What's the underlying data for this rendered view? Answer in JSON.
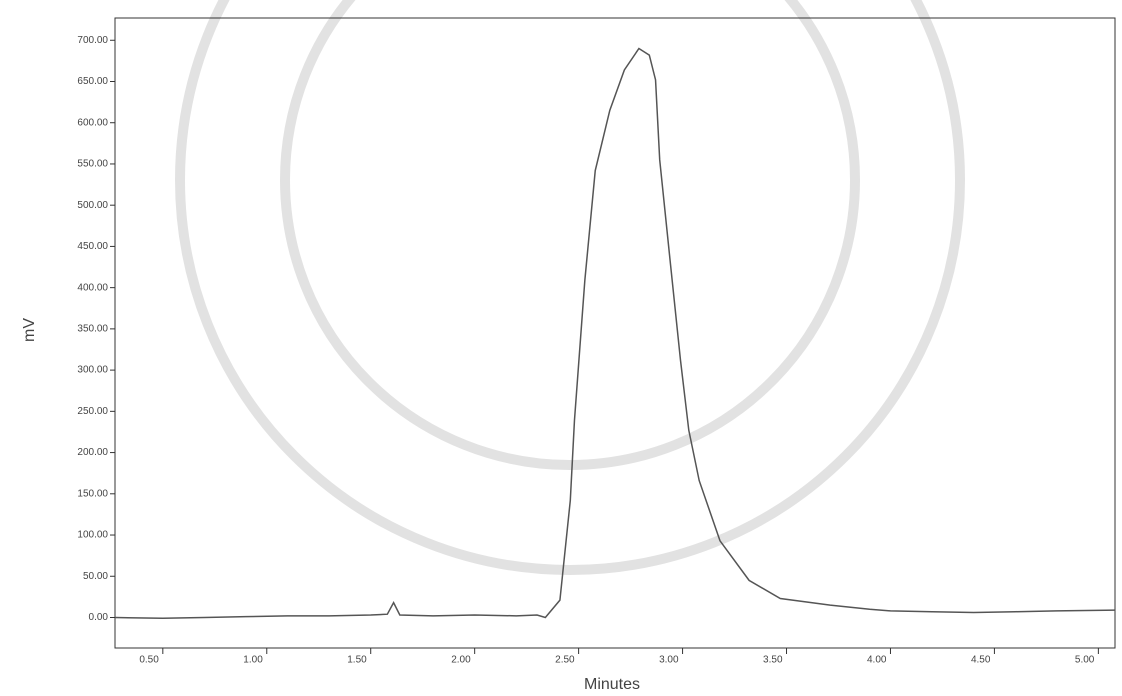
{
  "chart_data": {
    "type": "line",
    "x_label": "Minutes",
    "y_label": "mV",
    "x": [
      0.27,
      0.5,
      0.7,
      0.9,
      1.1,
      1.3,
      1.5,
      1.58,
      1.61,
      1.64,
      1.8,
      2.0,
      2.2,
      2.3,
      2.34,
      2.41,
      2.46,
      2.48,
      2.53,
      2.58,
      2.65,
      2.72,
      2.79,
      2.84,
      2.87,
      2.89,
      2.94,
      2.99,
      3.03,
      3.08,
      3.18,
      3.32,
      3.47,
      3.71,
      3.9,
      4.0,
      4.2,
      4.4,
      4.6,
      4.8,
      5.08
    ],
    "series": [
      {
        "name": "mV",
        "color": "#555555",
        "values": [
          0,
          -1,
          0,
          1,
          2,
          2,
          3,
          4,
          18,
          3,
          2,
          3,
          2,
          3,
          0,
          21,
          142,
          239,
          409,
          542,
          615,
          664,
          690,
          682,
          652,
          555,
          433,
          312,
          227,
          166,
          93,
          45,
          23,
          15,
          10,
          8,
          7,
          6,
          7,
          8,
          9
        ]
      }
    ],
    "xlim": [
      0.27,
      5.08
    ],
    "ylim": [
      -37,
      727
    ],
    "xticks": [
      {
        "value": 0.5,
        "label": "0.50"
      },
      {
        "value": 1.0,
        "label": "1.00"
      },
      {
        "value": 1.5,
        "label": "1.50"
      },
      {
        "value": 2.0,
        "label": "2.00"
      },
      {
        "value": 2.5,
        "label": "2.50"
      },
      {
        "value": 3.0,
        "label": "3.00"
      },
      {
        "value": 3.5,
        "label": "3.50"
      },
      {
        "value": 4.0,
        "label": "4.00"
      },
      {
        "value": 4.5,
        "label": "4.50"
      },
      {
        "value": 5.0,
        "label": "5.00"
      }
    ],
    "yticks": [
      {
        "value": 0,
        "label": "0.00"
      },
      {
        "value": 50,
        "label": "50.00"
      },
      {
        "value": 100,
        "label": "100.00"
      },
      {
        "value": 150,
        "label": "150.00"
      },
      {
        "value": 200,
        "label": "200.00"
      },
      {
        "value": 250,
        "label": "250.00"
      },
      {
        "value": 300,
        "label": "300.00"
      },
      {
        "value": 350,
        "label": "350.00"
      },
      {
        "value": 400,
        "label": "400.00"
      },
      {
        "value": 450,
        "label": "450.00"
      },
      {
        "value": 500,
        "label": "500.00"
      },
      {
        "value": 550,
        "label": "550.00"
      },
      {
        "value": 600,
        "label": "600.00"
      },
      {
        "value": 650,
        "label": "650.00"
      },
      {
        "value": 700,
        "label": "700.00"
      }
    ],
    "grid": false
  }
}
